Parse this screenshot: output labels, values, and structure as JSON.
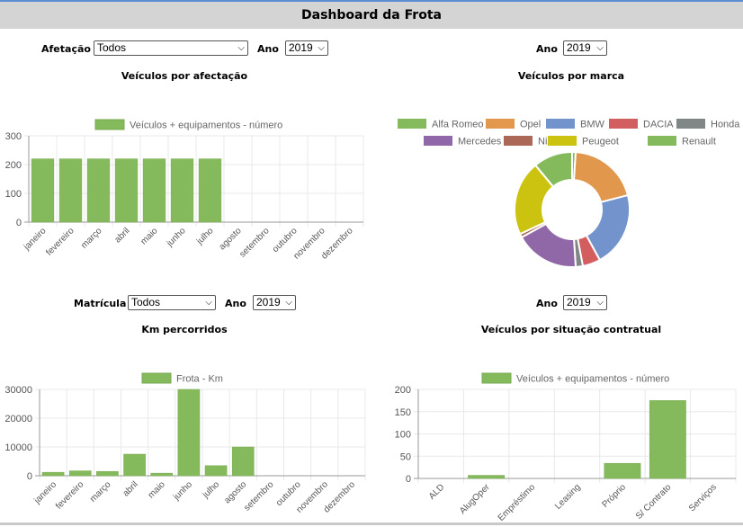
{
  "header": {
    "title": "Dashboard da Frota"
  },
  "controls": {
    "afetacao_label": "Afetação",
    "afetacao_value": "Todos",
    "ano_label": "Ano",
    "ano1_value": "2019",
    "ano2_value": "2019",
    "matricula_label": "Matrícula",
    "matricula_value": "Todos",
    "ano3_value": "2019",
    "ano4_value": "2019"
  },
  "chart_data": [
    {
      "type": "bar",
      "title": "Veículos por afectação",
      "categories": [
        "janeiro",
        "fevereiro",
        "março",
        "abril",
        "maio",
        "junho",
        "julho",
        "agosto",
        "setembro",
        "outubro",
        "novembro",
        "dezembro"
      ],
      "series": [
        {
          "name": "Veículos + equipamentos - número",
          "values": [
            220,
            220,
            220,
            220,
            220,
            220,
            220,
            0,
            0,
            0,
            0,
            0
          ]
        }
      ],
      "ylim": [
        0,
        300
      ],
      "yticks": [
        0,
        100,
        200,
        300
      ],
      "legend": "top",
      "grid": true,
      "color": "#84ba5b"
    },
    {
      "type": "pie",
      "title": "Veículos por marca",
      "labels": [
        "Alfa Romeo",
        "Opel",
        "BMW",
        "DACIA",
        "Honda",
        "Mercedes",
        "Nissan",
        "Peugeot",
        "Renault"
      ],
      "values": [
        1,
        20,
        21,
        5,
        2,
        18,
        1,
        21,
        11
      ],
      "colors": [
        "#84ba5b",
        "#e1974c",
        "#7293cb",
        "#d35e60",
        "#808585",
        "#9067a7",
        "#ab6857",
        "#ccc210",
        "#84ba5b"
      ],
      "legend": "top",
      "donut": true
    },
    {
      "type": "bar",
      "title": "Km percorridos",
      "categories": [
        "janeiro",
        "fevereiro",
        "março",
        "abril",
        "maio",
        "junho",
        "julho",
        "agosto",
        "setembro",
        "outubro",
        "novembro",
        "dezembro"
      ],
      "series": [
        {
          "name": "Frota - Km",
          "values": [
            1200,
            1700,
            1500,
            7500,
            900,
            30000,
            3500,
            10000,
            0,
            0,
            0,
            0
          ]
        }
      ],
      "ylim": [
        0,
        30000
      ],
      "yticks": [
        0,
        10000,
        20000,
        30000
      ],
      "legend": "top",
      "grid": true,
      "color": "#84ba5b"
    },
    {
      "type": "bar",
      "title": "Veículos por situação contratual",
      "categories": [
        "ALD",
        "AlugOper",
        "Empréstimo",
        "Leasing",
        "Próprio",
        "S/ Contrato",
        "Serviços"
      ],
      "series": [
        {
          "name": "Veículos + equipamentos - número",
          "values": [
            0,
            7,
            0,
            0,
            34,
            175,
            0
          ]
        }
      ],
      "ylim": [
        0,
        200
      ],
      "yticks": [
        0,
        50,
        100,
        150,
        200
      ],
      "legend": "top",
      "grid": true,
      "color": "#84ba5b"
    }
  ]
}
